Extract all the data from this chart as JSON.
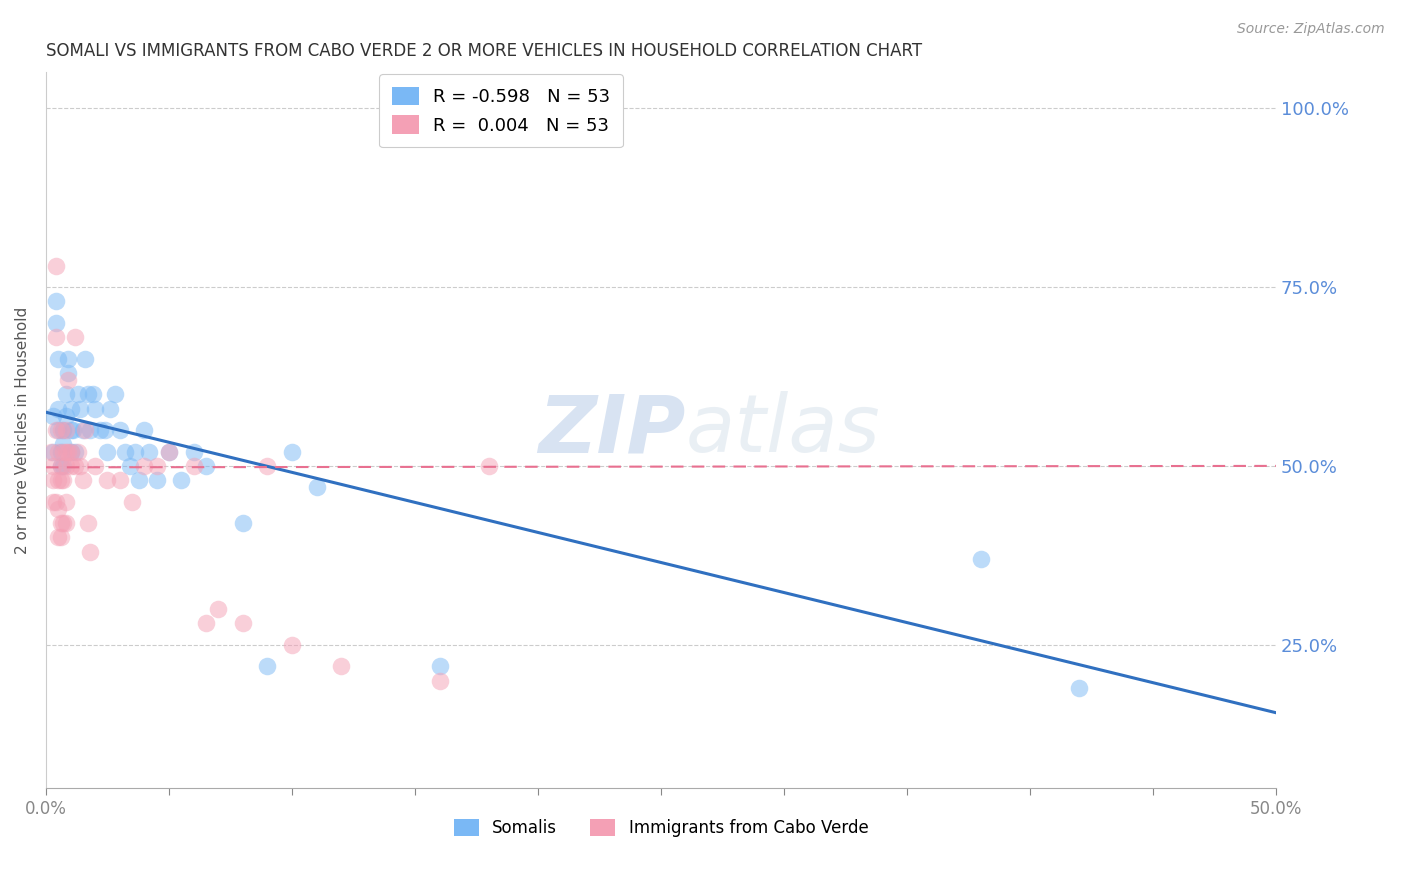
{
  "title": "SOMALI VS IMMIGRANTS FROM CABO VERDE 2 OR MORE VEHICLES IN HOUSEHOLD CORRELATION CHART",
  "source": "Source: ZipAtlas.com",
  "ylabel": "2 or more Vehicles in Household",
  "watermark": "ZIPatlas",
  "legend_lines": [
    {
      "label": "R = -0.598   N = 53",
      "color": "#7ab8f5"
    },
    {
      "label": "R =  0.004   N = 53",
      "color": "#f4a0b5"
    }
  ],
  "legend_bottom": [
    "Somalis",
    "Immigrants from Cabo Verde"
  ],
  "ytick_labels": [
    "100.0%",
    "75.0%",
    "50.0%",
    "25.0%"
  ],
  "ytick_values": [
    1.0,
    0.75,
    0.5,
    0.25
  ],
  "xmin": 0.0,
  "xmax": 0.5,
  "ymin": 0.05,
  "ymax": 1.05,
  "blue_color": "#7ab8f5",
  "pink_color": "#f4a0b5",
  "blue_line_color": "#3070c0",
  "pink_line_color": "#e87090",
  "blue_scatter": [
    [
      0.003,
      0.57
    ],
    [
      0.003,
      0.52
    ],
    [
      0.004,
      0.7
    ],
    [
      0.004,
      0.73
    ],
    [
      0.005,
      0.65
    ],
    [
      0.005,
      0.58
    ],
    [
      0.005,
      0.55
    ],
    [
      0.006,
      0.52
    ],
    [
      0.006,
      0.5
    ],
    [
      0.007,
      0.55
    ],
    [
      0.007,
      0.53
    ],
    [
      0.007,
      0.5
    ],
    [
      0.008,
      0.6
    ],
    [
      0.008,
      0.57
    ],
    [
      0.009,
      0.65
    ],
    [
      0.009,
      0.63
    ],
    [
      0.01,
      0.58
    ],
    [
      0.01,
      0.55
    ],
    [
      0.01,
      0.52
    ],
    [
      0.011,
      0.55
    ],
    [
      0.012,
      0.52
    ],
    [
      0.013,
      0.6
    ],
    [
      0.014,
      0.58
    ],
    [
      0.015,
      0.55
    ],
    [
      0.016,
      0.65
    ],
    [
      0.017,
      0.6
    ],
    [
      0.018,
      0.55
    ],
    [
      0.019,
      0.6
    ],
    [
      0.02,
      0.58
    ],
    [
      0.022,
      0.55
    ],
    [
      0.024,
      0.55
    ],
    [
      0.025,
      0.52
    ],
    [
      0.026,
      0.58
    ],
    [
      0.028,
      0.6
    ],
    [
      0.03,
      0.55
    ],
    [
      0.032,
      0.52
    ],
    [
      0.034,
      0.5
    ],
    [
      0.036,
      0.52
    ],
    [
      0.038,
      0.48
    ],
    [
      0.04,
      0.55
    ],
    [
      0.042,
      0.52
    ],
    [
      0.045,
      0.48
    ],
    [
      0.05,
      0.52
    ],
    [
      0.055,
      0.48
    ],
    [
      0.06,
      0.52
    ],
    [
      0.065,
      0.5
    ],
    [
      0.08,
      0.42
    ],
    [
      0.09,
      0.22
    ],
    [
      0.1,
      0.52
    ],
    [
      0.11,
      0.47
    ],
    [
      0.16,
      0.22
    ],
    [
      0.38,
      0.37
    ],
    [
      0.42,
      0.19
    ]
  ],
  "pink_scatter": [
    [
      0.002,
      0.52
    ],
    [
      0.003,
      0.5
    ],
    [
      0.003,
      0.48
    ],
    [
      0.003,
      0.45
    ],
    [
      0.004,
      0.78
    ],
    [
      0.004,
      0.68
    ],
    [
      0.004,
      0.55
    ],
    [
      0.004,
      0.45
    ],
    [
      0.005,
      0.52
    ],
    [
      0.005,
      0.48
    ],
    [
      0.005,
      0.44
    ],
    [
      0.005,
      0.4
    ],
    [
      0.006,
      0.55
    ],
    [
      0.006,
      0.5
    ],
    [
      0.006,
      0.48
    ],
    [
      0.006,
      0.42
    ],
    [
      0.006,
      0.4
    ],
    [
      0.007,
      0.52
    ],
    [
      0.007,
      0.48
    ],
    [
      0.007,
      0.42
    ],
    [
      0.008,
      0.55
    ],
    [
      0.008,
      0.52
    ],
    [
      0.008,
      0.5
    ],
    [
      0.008,
      0.45
    ],
    [
      0.008,
      0.42
    ],
    [
      0.009,
      0.62
    ],
    [
      0.009,
      0.52
    ],
    [
      0.01,
      0.52
    ],
    [
      0.01,
      0.5
    ],
    [
      0.012,
      0.68
    ],
    [
      0.012,
      0.5
    ],
    [
      0.013,
      0.52
    ],
    [
      0.014,
      0.5
    ],
    [
      0.015,
      0.48
    ],
    [
      0.016,
      0.55
    ],
    [
      0.017,
      0.42
    ],
    [
      0.018,
      0.38
    ],
    [
      0.02,
      0.5
    ],
    [
      0.025,
      0.48
    ],
    [
      0.03,
      0.48
    ],
    [
      0.035,
      0.45
    ],
    [
      0.04,
      0.5
    ],
    [
      0.045,
      0.5
    ],
    [
      0.05,
      0.52
    ],
    [
      0.06,
      0.5
    ],
    [
      0.065,
      0.28
    ],
    [
      0.07,
      0.3
    ],
    [
      0.08,
      0.28
    ],
    [
      0.09,
      0.5
    ],
    [
      0.1,
      0.25
    ],
    [
      0.12,
      0.22
    ],
    [
      0.16,
      0.2
    ],
    [
      0.18,
      0.5
    ]
  ],
  "blue_line_x": [
    0.0,
    0.5
  ],
  "blue_line_y": [
    0.575,
    0.155
  ],
  "pink_line_x": [
    0.0,
    0.5
  ],
  "pink_line_y": [
    0.498,
    0.5
  ]
}
